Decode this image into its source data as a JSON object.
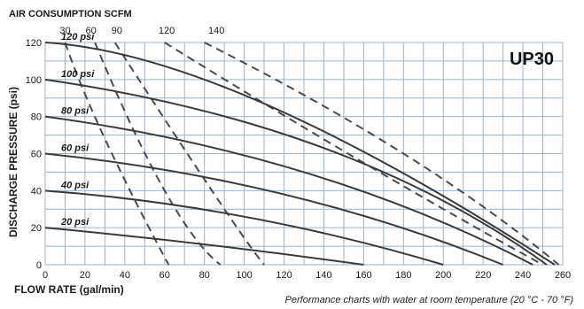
{
  "colors": {
    "grid": "#9bb3c9",
    "curve": "#3a3a3a",
    "air_curve": "#4a4a4a",
    "background": "#ffffff"
  },
  "chart_data": {
    "type": "line",
    "title": "UP30",
    "xlabel": "FLOW RATE (gal/min)",
    "ylabel": "DISCHARGE PRESSURE (psi)",
    "top_axis_label": "AIR CONSUMPTION SCFM",
    "xlim": [
      0,
      260
    ],
    "ylim": [
      0,
      120
    ],
    "x_ticks": [
      0,
      20,
      40,
      60,
      80,
      100,
      120,
      140,
      160,
      180,
      200,
      220,
      240,
      260
    ],
    "y_ticks": [
      0,
      20,
      40,
      60,
      80,
      100,
      120
    ],
    "x_tick_labels": [
      "0",
      "20",
      "40",
      "60",
      "80",
      "100",
      "120",
      "140",
      "160",
      "180",
      "200",
      "220",
      "240",
      "260"
    ],
    "y_tick_labels": [
      "0",
      "20",
      "40",
      "60",
      "80",
      "100",
      "120"
    ],
    "grid": true,
    "pressure_curves": [
      {
        "name": "20 psi",
        "x": [
          0,
          80,
          160
        ],
        "y": [
          20,
          11,
          0
        ]
      },
      {
        "name": "40 psi",
        "x": [
          0,
          100,
          200
        ],
        "y": [
          40,
          26,
          0
        ]
      },
      {
        "name": "60 psi",
        "x": [
          0,
          120,
          230
        ],
        "y": [
          60,
          38,
          0
        ]
      },
      {
        "name": "80 psi",
        "x": [
          0,
          130,
          245
        ],
        "y": [
          80,
          50,
          0
        ]
      },
      {
        "name": "100 psi",
        "x": [
          0,
          140,
          252
        ],
        "y": [
          100,
          63,
          0
        ]
      },
      {
        "name": "120 psi",
        "x": [
          0,
          110,
          256
        ],
        "y": [
          120,
          87,
          0
        ]
      }
    ],
    "air_consumption_curves": [
      {
        "name": "30",
        "x": [
          10,
          30,
          62
        ],
        "y": [
          120,
          68,
          0
        ]
      },
      {
        "name": "60",
        "x": [
          25,
          60,
          88
        ],
        "y": [
          120,
          40,
          0
        ]
      },
      {
        "name": "90",
        "x": [
          35,
          85,
          110
        ],
        "y": [
          120,
          38,
          0
        ]
      },
      {
        "name": "120",
        "x": [
          60,
          160,
          250
        ],
        "y": [
          120,
          55,
          0
        ]
      },
      {
        "name": "140",
        "x": [
          80,
          180,
          258
        ],
        "y": [
          120,
          60,
          0
        ]
      }
    ],
    "air_labels": [
      {
        "text": "30",
        "x": 10
      },
      {
        "text": "60",
        "x": 23
      },
      {
        "text": "90",
        "x": 36
      },
      {
        "text": "120",
        "x": 61
      },
      {
        "text": "140",
        "x": 86
      }
    ],
    "annotation": "Performance charts with water at room temperature (20 °C - 70 °F)"
  }
}
